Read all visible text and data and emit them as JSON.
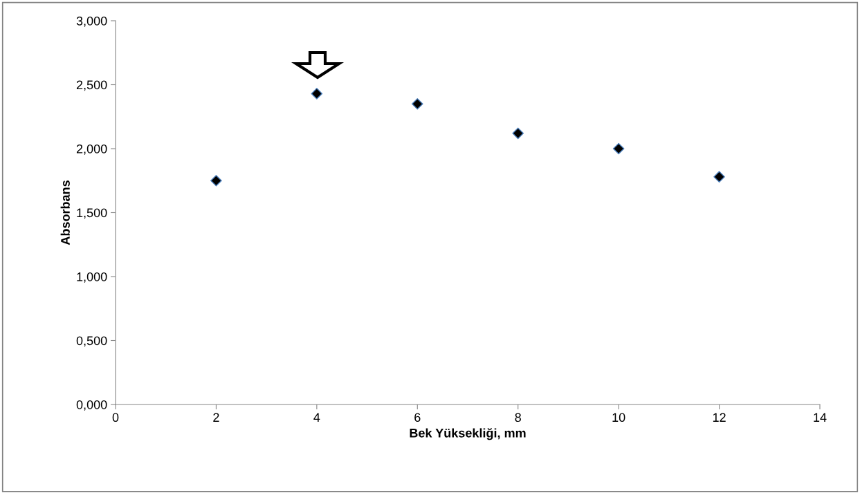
{
  "chart_data": {
    "type": "scatter",
    "xlabel": "Bek Yüksekliği, mm",
    "ylabel": "Absorbans",
    "x": [
      2,
      4,
      6,
      8,
      10,
      12
    ],
    "series": [
      {
        "color": "#000000",
        "values": [
          1.75,
          2.43,
          2.35,
          2.12,
          2.0,
          1.78
        ]
      }
    ],
    "marker": "diamond",
    "xlim": [
      0,
      14
    ],
    "xticks": [
      0,
      2,
      4,
      6,
      8,
      10,
      12,
      14
    ],
    "ylim": [
      0,
      3
    ],
    "yticks": [
      {
        "value": 0,
        "label": "0,000"
      },
      {
        "value": 0.5,
        "label": "0,500"
      },
      {
        "value": 1,
        "label": "1,000"
      },
      {
        "value": 1.5,
        "label": "1,500"
      },
      {
        "value": 2,
        "label": "2,000"
      },
      {
        "value": 2.5,
        "label": "2,500"
      },
      {
        "value": 3,
        "label": "3,000"
      }
    ],
    "grid": false,
    "legend": false
  }
}
